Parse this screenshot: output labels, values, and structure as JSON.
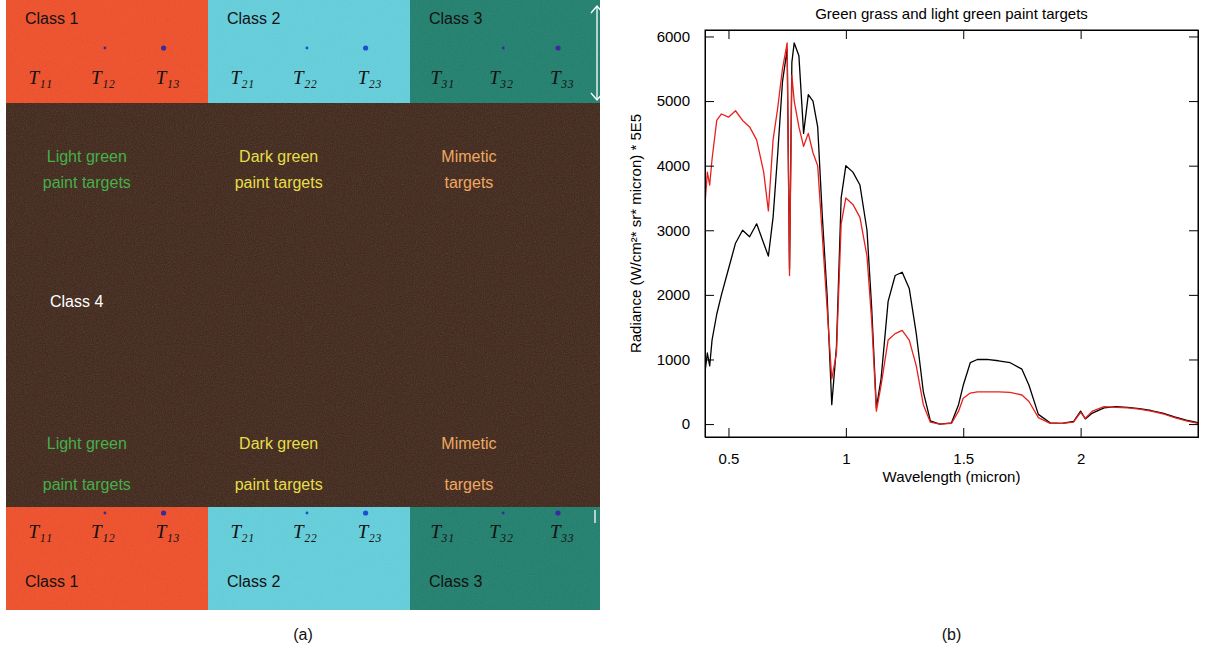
{
  "scene": {
    "panel_label": "(a)",
    "top_classes": [
      {
        "label": "Class 1",
        "color": "#f04e28",
        "targets": [
          "T₁₁",
          "T₁₂",
          "T₁₃"
        ]
      },
      {
        "label": "Class 2",
        "color": "#62cfdc",
        "targets": [
          "T₂₁",
          "T₂₂",
          "T₂₃"
        ]
      },
      {
        "label": "Class 3",
        "color": "#1f7f6d",
        "targets": [
          "T₃₁",
          "T₃₂",
          "T₃₃"
        ]
      }
    ],
    "top_groups": [
      {
        "lines": [
          "Light green",
          "paint targets"
        ],
        "color": "#45b04a"
      },
      {
        "lines": [
          "Dark green",
          "paint targets"
        ],
        "color": "#e6df4a"
      },
      {
        "lines": [
          "Mimetic",
          "targets"
        ],
        "color": "#f0a862"
      }
    ],
    "background_label": "Class 4",
    "background_color": "#3d2316",
    "bottom_groups": [
      {
        "lines": [
          "Light green",
          "paint targets"
        ],
        "color": "#45b04a"
      },
      {
        "lines": [
          "Dark green",
          "paint targets"
        ],
        "color": "#e6df4a"
      },
      {
        "lines": [
          "Mimetic",
          "targets"
        ],
        "color": "#f0a862"
      }
    ],
    "bottom_classes": [
      {
        "label": "Class 1",
        "color": "#f04e28",
        "targets": [
          "T₁₁",
          "T₁₂",
          "T₁₃"
        ]
      },
      {
        "label": "Class 2",
        "color": "#62cfdc",
        "targets": [
          "T₂₁",
          "T₂₂",
          "T₂₃"
        ]
      },
      {
        "label": "Class 3",
        "color": "#1f7f6d",
        "targets": [
          "T₃₁",
          "T₃₂",
          "T₃₃"
        ]
      }
    ]
  },
  "chart_data": {
    "type": "line",
    "title": "Green grass and light green paint targets",
    "x_label": "Wavelength (micron)",
    "y_label": "Radiance (W/cm²* sr* micron) * 5E5",
    "annotations": [
      "(b)"
    ],
    "xlim": [
      0.4,
      2.5
    ],
    "xticks": [
      0.5,
      1,
      1.5,
      2
    ],
    "ylim": [
      -200,
      6100
    ],
    "yticks": [
      0,
      1000,
      2000,
      3000,
      4000,
      5000,
      6000
    ],
    "grid": false,
    "x": [
      0.4,
      0.41,
      0.42,
      0.43,
      0.45,
      0.47,
      0.5,
      0.53,
      0.56,
      0.59,
      0.62,
      0.65,
      0.67,
      0.69,
      0.71,
      0.73,
      0.75,
      0.76,
      0.77,
      0.78,
      0.8,
      0.82,
      0.84,
      0.86,
      0.88,
      0.9,
      0.92,
      0.94,
      0.96,
      0.98,
      1.0,
      1.03,
      1.06,
      1.09,
      1.11,
      1.13,
      1.15,
      1.18,
      1.21,
      1.24,
      1.27,
      1.3,
      1.33,
      1.36,
      1.4,
      1.45,
      1.48,
      1.5,
      1.53,
      1.56,
      1.6,
      1.65,
      1.7,
      1.75,
      1.78,
      1.82,
      1.87,
      1.92,
      1.97,
      2.0,
      2.02,
      2.05,
      2.1,
      2.15,
      2.2,
      2.25,
      2.3,
      2.35,
      2.4,
      2.45,
      2.5
    ],
    "series": [
      {
        "color": "#000000",
        "values": [
          800,
          1100,
          900,
          1300,
          1700,
          2000,
          2400,
          2800,
          3000,
          2900,
          3100,
          2800,
          2600,
          3200,
          4200,
          5300,
          5800,
          2400,
          5600,
          5900,
          5700,
          4500,
          5100,
          5000,
          4600,
          3200,
          2000,
          300,
          1200,
          3500,
          4000,
          3900,
          3700,
          3000,
          1800,
          250,
          700,
          1900,
          2300,
          2350,
          2100,
          1400,
          500,
          50,
          0,
          20,
          300,
          600,
          950,
          1000,
          1000,
          980,
          950,
          850,
          600,
          150,
          20,
          10,
          40,
          200,
          80,
          170,
          250,
          270,
          260,
          240,
          210,
          170,
          110,
          60,
          20
        ]
      },
      {
        "color": "#e8201c",
        "values": [
          3400,
          3900,
          3700,
          4100,
          4700,
          4800,
          4750,
          4850,
          4700,
          4600,
          4400,
          3900,
          3300,
          4400,
          4900,
          5500,
          5900,
          2300,
          5400,
          5000,
          4600,
          4300,
          4500,
          4200,
          4000,
          2900,
          1800,
          700,
          1100,
          3100,
          3500,
          3400,
          3200,
          2600,
          1600,
          200,
          600,
          1300,
          1400,
          1450,
          1300,
          900,
          300,
          30,
          0,
          10,
          200,
          400,
          480,
          500,
          500,
          500,
          490,
          450,
          350,
          100,
          10,
          10,
          30,
          180,
          90,
          200,
          270,
          260,
          250,
          230,
          200,
          160,
          100,
          50,
          10
        ]
      }
    ]
  }
}
